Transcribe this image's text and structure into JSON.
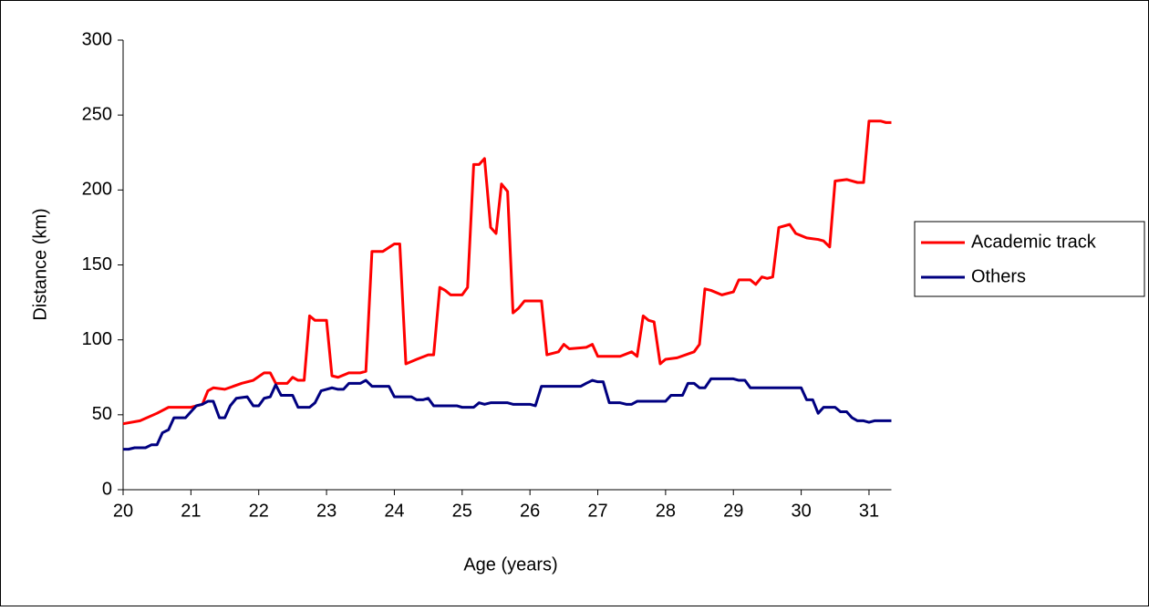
{
  "chart_data": {
    "type": "line",
    "x_label": "Age (years)",
    "y_label": "Distance (km)",
    "xlim": [
      20,
      31.33
    ],
    "xticks": [
      20,
      21,
      22,
      23,
      24,
      25,
      26,
      27,
      28,
      29,
      30,
      31
    ],
    "ylim": [
      0,
      300
    ],
    "yticks": [
      0,
      50,
      100,
      150,
      200,
      250,
      300
    ],
    "grid": false,
    "legend": "right",
    "series": [
      {
        "name": "Academic track",
        "color": "#ff0000",
        "x": [
          20.0,
          20.25,
          20.5,
          20.67,
          21.0,
          21.17,
          21.25,
          21.33,
          21.5,
          21.75,
          21.92,
          22.08,
          22.17,
          22.25,
          22.42,
          22.5,
          22.58,
          22.67,
          22.75,
          22.83,
          23.0,
          23.08,
          23.17,
          23.33,
          23.5,
          23.58,
          23.67,
          23.83,
          24.0,
          24.08,
          24.17,
          24.33,
          24.5,
          24.58,
          24.67,
          24.75,
          24.83,
          25.0,
          25.08,
          25.17,
          25.25,
          25.33,
          25.42,
          25.5,
          25.58,
          25.67,
          25.75,
          25.83,
          25.92,
          26.08,
          26.17,
          26.25,
          26.42,
          26.5,
          26.58,
          26.83,
          26.92,
          27.0,
          27.33,
          27.5,
          27.58,
          27.67,
          27.75,
          27.83,
          27.92,
          28.0,
          28.17,
          28.42,
          28.5,
          28.58,
          28.67,
          28.83,
          29.0,
          29.08,
          29.25,
          29.33,
          29.42,
          29.5,
          29.58,
          29.67,
          29.83,
          29.92,
          30.08,
          30.25,
          30.33,
          30.42,
          30.5,
          30.67,
          30.83,
          30.92,
          31.0,
          31.17,
          31.25,
          31.33
        ],
        "values": [
          44,
          46,
          51,
          55,
          55,
          57,
          66,
          68,
          67,
          71,
          73,
          78,
          78,
          71,
          71,
          75,
          73,
          73,
          116,
          113,
          113,
          76,
          75,
          78,
          78,
          79,
          159,
          159,
          164,
          164,
          84,
          87,
          90,
          90,
          135,
          133,
          130,
          130,
          135,
          217,
          217,
          221,
          175,
          171,
          204,
          199,
          118,
          121,
          126,
          126,
          126,
          90,
          92,
          97,
          94,
          95,
          97,
          89,
          89,
          92,
          89,
          116,
          113,
          112,
          84,
          87,
          88,
          92,
          97,
          134,
          133,
          130,
          132,
          140,
          140,
          137,
          142,
          141,
          142,
          175,
          177,
          171,
          168,
          167,
          166,
          162,
          206,
          207,
          205,
          205,
          246,
          246,
          245,
          245
        ]
      },
      {
        "name": "Others",
        "color": "#000080",
        "x": [
          20.0,
          20.08,
          20.17,
          20.33,
          20.42,
          20.5,
          20.58,
          20.67,
          20.75,
          20.92,
          21.0,
          21.08,
          21.17,
          21.25,
          21.33,
          21.42,
          21.5,
          21.58,
          21.67,
          21.83,
          21.92,
          22.0,
          22.08,
          22.17,
          22.25,
          22.33,
          22.5,
          22.58,
          22.75,
          22.83,
          22.92,
          23.0,
          23.08,
          23.17,
          23.25,
          23.33,
          23.5,
          23.58,
          23.67,
          23.92,
          24.0,
          24.25,
          24.33,
          24.42,
          24.5,
          24.58,
          24.92,
          25.0,
          25.17,
          25.25,
          25.33,
          25.42,
          25.67,
          25.75,
          26.0,
          26.08,
          26.17,
          26.75,
          26.83,
          26.92,
          27.0,
          27.08,
          27.17,
          27.33,
          27.42,
          27.5,
          27.58,
          28.0,
          28.08,
          28.25,
          28.33,
          28.42,
          28.5,
          28.58,
          28.67,
          29.0,
          29.08,
          29.17,
          29.25,
          30.0,
          30.08,
          30.17,
          30.25,
          30.33,
          30.5,
          30.58,
          30.67,
          30.75,
          30.83,
          30.92,
          31.0,
          31.08,
          31.33
        ],
        "values": [
          27,
          27,
          28,
          28,
          30,
          30,
          38,
          40,
          48,
          48,
          52,
          56,
          57,
          59,
          59,
          48,
          48,
          56,
          61,
          62,
          56,
          56,
          61,
          62,
          70,
          63,
          63,
          55,
          55,
          58,
          66,
          67,
          68,
          67,
          67,
          71,
          71,
          73,
          69,
          69,
          62,
          62,
          60,
          60,
          61,
          56,
          56,
          55,
          55,
          58,
          57,
          58,
          58,
          57,
          57,
          56,
          69,
          69,
          71,
          73,
          72,
          72,
          58,
          58,
          57,
          57,
          59,
          59,
          63,
          63,
          71,
          71,
          68,
          68,
          74,
          74,
          73,
          73,
          68,
          68,
          60,
          60,
          51,
          55,
          55,
          52,
          52,
          48,
          46,
          46,
          45,
          46,
          46
        ]
      }
    ]
  }
}
